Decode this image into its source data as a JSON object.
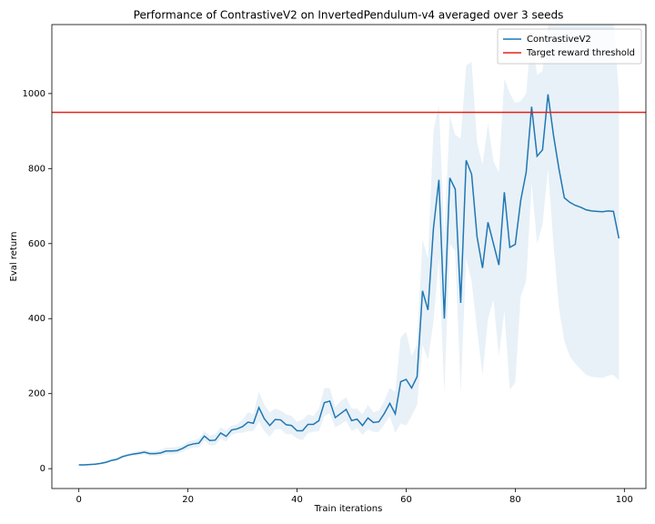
{
  "chart_data": {
    "type": "line",
    "title": "Performance of ContrastiveV2 on InvertedPendulum-v4 averaged over 3 seeds",
    "x_label": "Train iterations",
    "y_label": "Eval return",
    "x": [
      0,
      1,
      2,
      3,
      4,
      5,
      6,
      7,
      8,
      9,
      10,
      11,
      12,
      13,
      14,
      15,
      16,
      17,
      18,
      19,
      20,
      21,
      22,
      23,
      24,
      25,
      26,
      27,
      28,
      29,
      30,
      31,
      32,
      33,
      34,
      35,
      36,
      37,
      38,
      39,
      40,
      41,
      42,
      43,
      44,
      45,
      46,
      47,
      48,
      49,
      50,
      51,
      52,
      53,
      54,
      55,
      56,
      57,
      58,
      59,
      60,
      61,
      62,
      63,
      64,
      65,
      66,
      67,
      68,
      69,
      70,
      71,
      72,
      73,
      74,
      75,
      76,
      77,
      78,
      79,
      80,
      81,
      82,
      83,
      84,
      85,
      86,
      87,
      88,
      89,
      90,
      91,
      92,
      93,
      94,
      95,
      96,
      97,
      98,
      99
    ],
    "series": [
      {
        "name": "ContrastiveV2",
        "color": "#1f77b4",
        "values": [
          10,
          10,
          11,
          12,
          14,
          17,
          22,
          25,
          32,
          36,
          39,
          41,
          44,
          40,
          40,
          42,
          47,
          47,
          48,
          54,
          62,
          66,
          68,
          87,
          75,
          76,
          95,
          86,
          103,
          106,
          112,
          124,
          121,
          163,
          133,
          115,
          131,
          130,
          117,
          115,
          101,
          101,
          118,
          118,
          128,
          176,
          180,
          136,
          147,
          158,
          128,
          132,
          115,
          135,
          123,
          125,
          147,
          174,
          146,
          232,
          238,
          215,
          245,
          474,
          423,
          640,
          770,
          400,
          775,
          745,
          442,
          822,
          785,
          618,
          535,
          657,
          600,
          543,
          737,
          590,
          598,
          715,
          790,
          965,
          833,
          850,
          998,
          890,
          800,
          722,
          710,
          702,
          697,
          690,
          687,
          686,
          685,
          687,
          686,
          614
        ],
        "band_lower": [
          8,
          8,
          9,
          10,
          12,
          14,
          19,
          21,
          28,
          32,
          34,
          36,
          38,
          34,
          34,
          35,
          38,
          38,
          40,
          45,
          52,
          56,
          56,
          75,
          62,
          62,
          80,
          72,
          90,
          95,
          96,
          100,
          100,
          125,
          100,
          85,
          105,
          105,
          92,
          92,
          80,
          76,
          95,
          98,
          100,
          140,
          148,
          110,
          118,
          128,
          100,
          108,
          90,
          105,
          98,
          98,
          118,
          140,
          95,
          120,
          115,
          140,
          170,
          330,
          290,
          390,
          560,
          200,
          600,
          580,
          200,
          560,
          500,
          370,
          250,
          400,
          450,
          300,
          420,
          210,
          230,
          460,
          500,
          760,
          600,
          650,
          800,
          600,
          430,
          340,
          300,
          280,
          265,
          250,
          245,
          243,
          242,
          248,
          250,
          235
        ],
        "band_upper": [
          12,
          12,
          13,
          14,
          16,
          20,
          25,
          29,
          36,
          40,
          44,
          47,
          50,
          46,
          47,
          50,
          56,
          56,
          58,
          62,
          72,
          76,
          80,
          100,
          88,
          92,
          110,
          102,
          115,
          118,
          130,
          150,
          145,
          205,
          170,
          150,
          160,
          155,
          145,
          140,
          125,
          130,
          145,
          140,
          160,
          215,
          215,
          165,
          180,
          190,
          160,
          160,
          145,
          170,
          150,
          155,
          180,
          215,
          205,
          350,
          365,
          300,
          330,
          610,
          560,
          900,
          970,
          620,
          940,
          890,
          880,
          1075,
          1085,
          870,
          810,
          920,
          820,
          790,
          1040,
          1000,
          975,
          980,
          1000,
          1170,
          1050,
          1060,
          1180,
          1200,
          1200,
          1200,
          1200,
          1200,
          1200,
          1200,
          1200,
          1200,
          1200,
          1200,
          1200,
          1000
        ]
      }
    ],
    "threshold": {
      "name": "Target reward threshold",
      "value": 950,
      "color": "#e8211a"
    },
    "band_color": "#1f77b4",
    "xlim": [
      -4.95,
      103.95
    ],
    "ylim": [
      -53,
      1184
    ],
    "xticks": [
      0,
      20,
      40,
      60,
      80,
      100
    ],
    "yticks": [
      0,
      200,
      400,
      600,
      800,
      1000
    ],
    "legend": "upper right"
  }
}
